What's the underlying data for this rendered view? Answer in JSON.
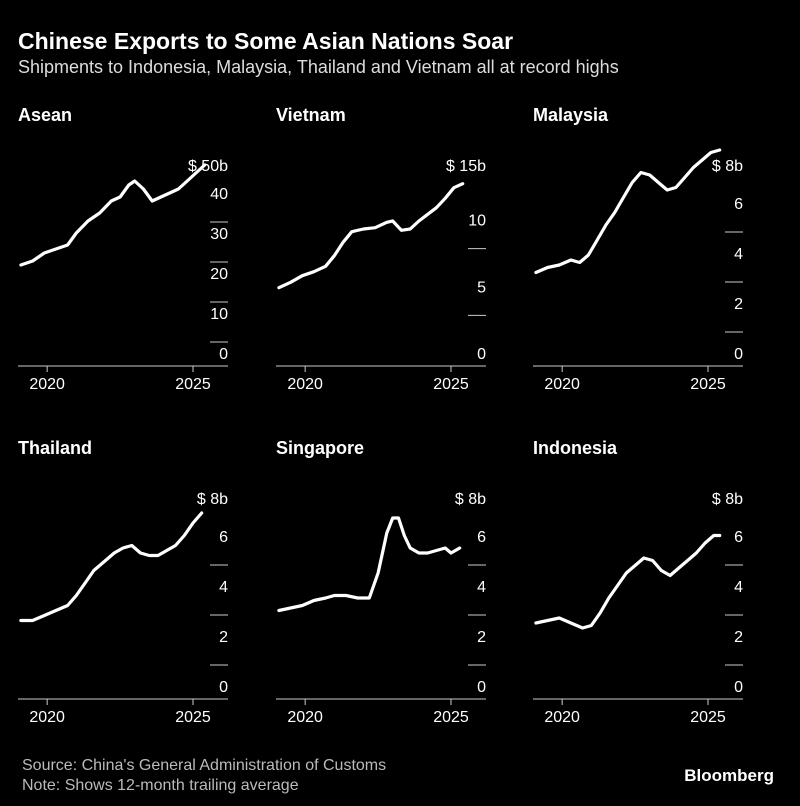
{
  "title": "Chinese Exports to Some Asian Nations Soar",
  "subtitle": "Shipments to Indonesia, Malaysia, Thailand and Vietnam all at record highs",
  "source": "Source: China's General Administration of Customs",
  "note": "Note: Shows 12-month trailing average",
  "brand": "Bloomberg",
  "colors": {
    "background": "#000000",
    "line": "#ffffff",
    "axis": "#cccccc"
  },
  "chart_data": [
    {
      "type": "line",
      "title": "Asean",
      "unit_label": "$ 50b",
      "ylim": [
        0,
        50
      ],
      "yticks": [
        0,
        10,
        20,
        30,
        40
      ],
      "xlim": [
        2019,
        2026.2
      ],
      "xticks": [
        2020,
        2025
      ],
      "series": [
        {
          "x": [
            2019.1,
            2019.5,
            2019.9,
            2020.3,
            2020.7,
            2021.0,
            2021.4,
            2021.8,
            2022.2,
            2022.5,
            2022.8,
            2023.0,
            2023.3,
            2023.6,
            2023.9,
            2024.2,
            2024.5,
            2024.8,
            2025.1,
            2025.4
          ],
          "values": [
            25,
            26,
            28,
            29,
            30,
            33,
            36,
            38,
            41,
            42,
            45,
            46,
            44,
            41,
            42,
            43,
            44,
            46,
            48,
            50
          ]
        }
      ]
    },
    {
      "type": "line",
      "title": "Vietnam",
      "unit_label": "$ 15b",
      "ylim": [
        0,
        15
      ],
      "yticks": [
        0,
        5,
        10
      ],
      "xlim": [
        2019,
        2026.2
      ],
      "xticks": [
        2020,
        2025
      ],
      "series": [
        {
          "x": [
            2019.1,
            2019.5,
            2019.9,
            2020.3,
            2020.7,
            2021.0,
            2021.3,
            2021.6,
            2022.0,
            2022.4,
            2022.8,
            2023.0,
            2023.3,
            2023.6,
            2023.9,
            2024.2,
            2024.5,
            2024.8,
            2025.1,
            2025.4
          ],
          "values": [
            5.8,
            6.2,
            6.7,
            7.0,
            7.4,
            8.2,
            9.2,
            10.0,
            10.2,
            10.3,
            10.7,
            10.8,
            10.1,
            10.2,
            10.8,
            11.3,
            11.8,
            12.5,
            13.3,
            13.6
          ]
        }
      ]
    },
    {
      "type": "line",
      "title": "Malaysia",
      "unit_label": "$ 8b",
      "ylim": [
        0,
        8
      ],
      "yticks": [
        0,
        2,
        4,
        6
      ],
      "xlim": [
        2019,
        2026.2
      ],
      "xticks": [
        2020,
        2025
      ],
      "series": [
        {
          "x": [
            2019.1,
            2019.5,
            2019.9,
            2020.3,
            2020.6,
            2020.9,
            2021.2,
            2021.5,
            2021.8,
            2022.1,
            2022.4,
            2022.7,
            2023.0,
            2023.3,
            2023.6,
            2023.9,
            2024.2,
            2024.5,
            2024.8,
            2025.1,
            2025.4
          ],
          "values": [
            3.7,
            3.9,
            4.0,
            4.2,
            4.1,
            4.4,
            5.0,
            5.6,
            6.1,
            6.7,
            7.3,
            7.7,
            7.6,
            7.3,
            7.0,
            7.1,
            7.5,
            7.9,
            8.2,
            8.5,
            8.6
          ]
        }
      ]
    },
    {
      "type": "line",
      "title": "Thailand",
      "unit_label": "$ 8b",
      "ylim": [
        0,
        8
      ],
      "yticks": [
        0,
        2,
        4,
        6
      ],
      "xlim": [
        2019,
        2026.2
      ],
      "xticks": [
        2020,
        2025
      ],
      "series": [
        {
          "x": [
            2019.1,
            2019.5,
            2019.9,
            2020.3,
            2020.7,
            2021.0,
            2021.3,
            2021.6,
            2022.0,
            2022.3,
            2022.6,
            2022.9,
            2023.2,
            2023.5,
            2023.8,
            2024.1,
            2024.4,
            2024.7,
            2025.0,
            2025.3
          ],
          "values": [
            3.1,
            3.1,
            3.3,
            3.5,
            3.7,
            4.1,
            4.6,
            5.1,
            5.5,
            5.8,
            6.0,
            6.1,
            5.8,
            5.7,
            5.7,
            5.9,
            6.1,
            6.5,
            7.0,
            7.4
          ]
        }
      ]
    },
    {
      "type": "line",
      "title": "Singapore",
      "unit_label": "$ 8b",
      "ylim": [
        0,
        8
      ],
      "yticks": [
        0,
        2,
        4,
        6
      ],
      "xlim": [
        2019,
        2026.2
      ],
      "xticks": [
        2020,
        2025
      ],
      "series": [
        {
          "x": [
            2019.1,
            2019.5,
            2019.9,
            2020.3,
            2020.7,
            2021.0,
            2021.4,
            2021.8,
            2022.2,
            2022.5,
            2022.8,
            2023.0,
            2023.2,
            2023.4,
            2023.6,
            2023.9,
            2024.2,
            2024.5,
            2024.8,
            2025.0,
            2025.3
          ],
          "values": [
            3.5,
            3.6,
            3.7,
            3.9,
            4.0,
            4.1,
            4.1,
            4.0,
            4.0,
            5.0,
            6.6,
            7.2,
            7.2,
            6.5,
            6.0,
            5.8,
            5.8,
            5.9,
            6.0,
            5.8,
            6.0
          ]
        }
      ]
    },
    {
      "type": "line",
      "title": "Indonesia",
      "unit_label": "$ 8b",
      "ylim": [
        0,
        8
      ],
      "yticks": [
        0,
        2,
        4,
        6
      ],
      "xlim": [
        2019,
        2026.2
      ],
      "xticks": [
        2020,
        2025
      ],
      "series": [
        {
          "x": [
            2019.1,
            2019.5,
            2019.9,
            2020.3,
            2020.7,
            2021.0,
            2021.3,
            2021.6,
            2021.9,
            2022.2,
            2022.5,
            2022.8,
            2023.1,
            2023.4,
            2023.7,
            2024.0,
            2024.3,
            2024.6,
            2024.9,
            2025.2,
            2025.4
          ],
          "values": [
            3.0,
            3.1,
            3.2,
            3.0,
            2.8,
            2.9,
            3.4,
            4.0,
            4.5,
            5.0,
            5.3,
            5.6,
            5.5,
            5.1,
            4.9,
            5.2,
            5.5,
            5.8,
            6.2,
            6.5,
            6.5
          ]
        }
      ]
    }
  ]
}
